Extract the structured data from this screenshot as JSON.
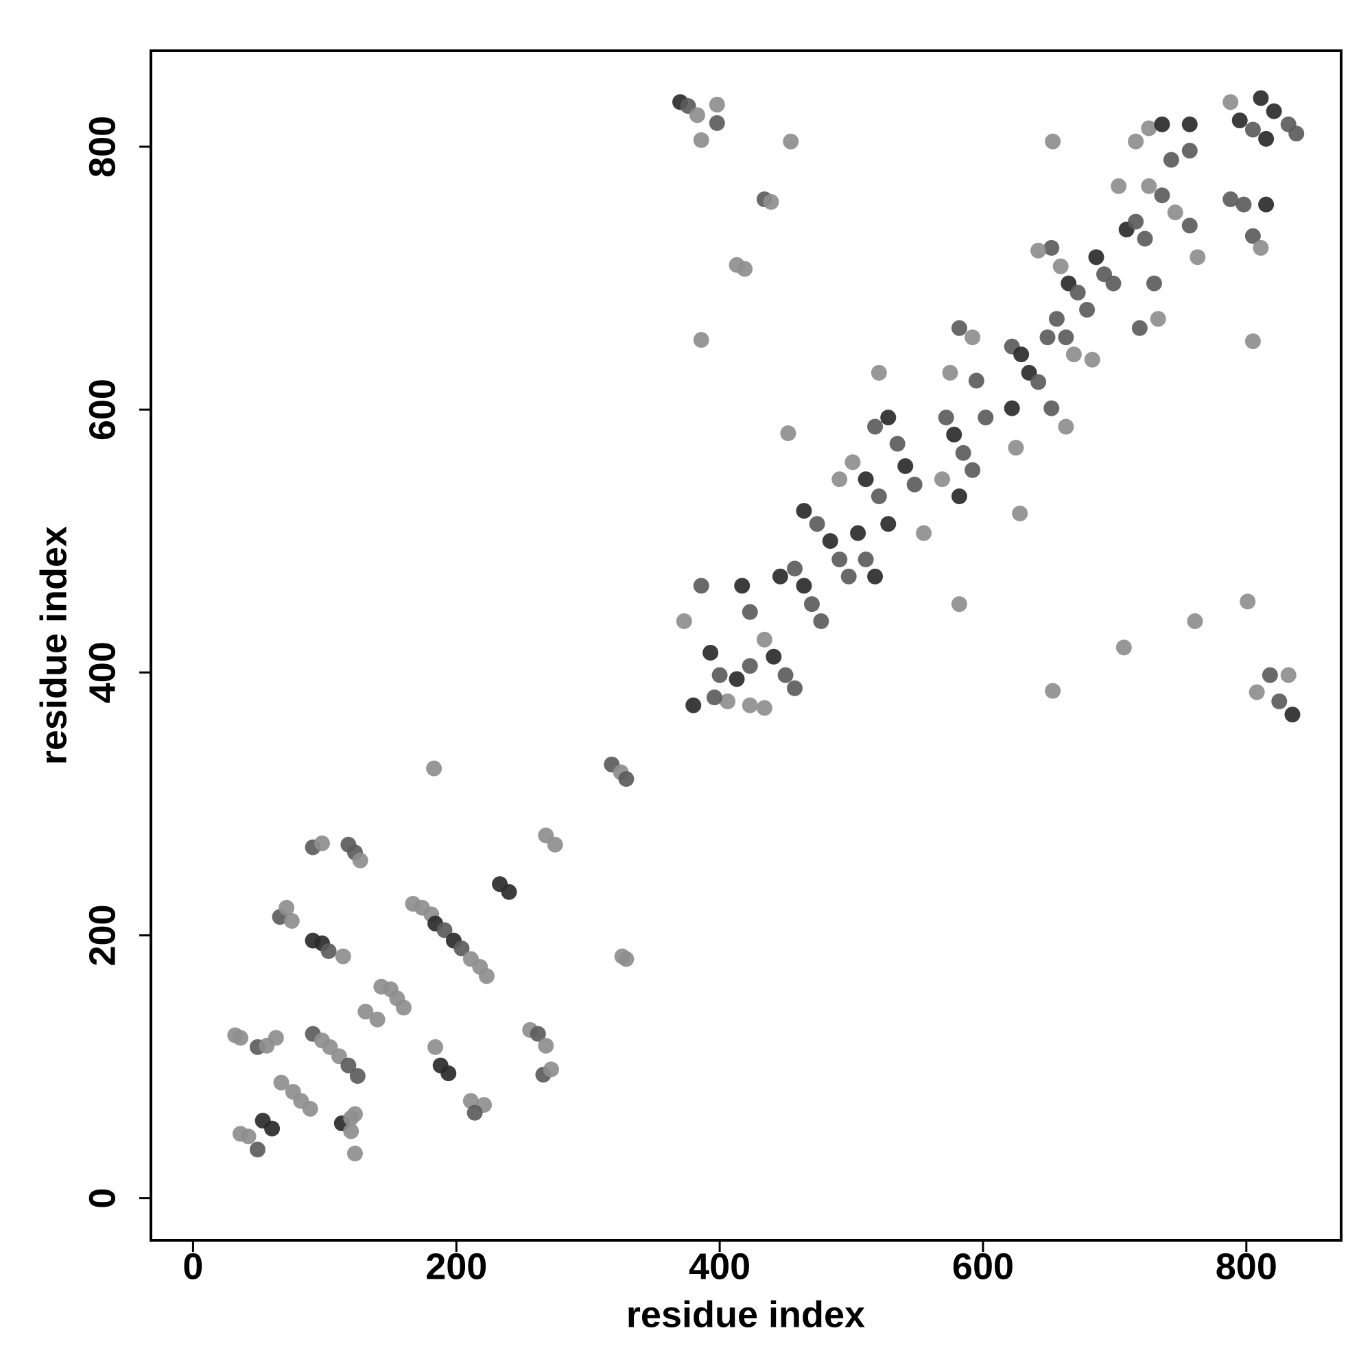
{
  "chart_data": {
    "type": "scatter",
    "x_label": "residue index",
    "y_label": "residue index",
    "xlim": [
      -32,
      872
    ],
    "ylim": [
      -32,
      873
    ],
    "xticks": [
      0,
      200,
      400,
      600,
      800
    ],
    "yticks": [
      0,
      200,
      400,
      600,
      800
    ],
    "grid": false,
    "x": [
      32,
      36,
      36,
      42,
      49,
      53,
      60,
      49,
      56,
      63,
      67,
      76,
      82,
      89,
      66,
      71,
      75,
      91,
      98,
      103,
      114,
      91,
      98,
      118,
      123,
      127,
      91,
      98,
      104,
      111,
      118,
      125,
      113,
      120,
      123,
      120,
      123,
      131,
      140,
      143,
      150,
      155,
      160,
      167,
      174,
      181,
      184,
      191,
      198,
      204,
      211,
      218,
      223,
      183,
      184,
      188,
      194,
      211,
      221,
      214,
      233,
      240,
      256,
      262,
      268,
      266,
      272,
      268,
      275,
      318,
      325,
      329,
      326,
      329,
      370,
      376,
      383,
      386,
      398,
      398,
      386,
      373,
      386,
      393,
      400,
      406,
      413,
      423,
      417,
      423,
      434,
      441,
      450,
      457,
      446,
      457,
      464,
      470,
      477,
      464,
      474,
      484,
      491,
      498,
      491,
      501,
      505,
      511,
      518,
      511,
      521,
      528,
      518,
      528,
      535,
      541,
      548,
      555,
      572,
      578,
      585,
      592,
      569,
      582,
      575,
      582,
      592,
      595,
      602,
      622,
      629,
      635,
      642,
      649,
      656,
      663,
      669,
      652,
      663,
      622,
      625,
      652,
      659,
      665,
      672,
      679,
      686,
      692,
      699,
      703,
      709,
      716,
      723,
      730,
      733,
      719,
      716,
      726,
      736,
      743,
      757,
      757,
      726,
      736,
      746,
      757,
      763,
      788,
      795,
      805,
      815,
      811,
      821,
      832,
      838,
      788,
      798,
      805,
      811,
      815,
      805,
      801,
      818,
      832,
      808,
      825,
      835,
      761,
      707,
      653,
      582,
      521,
      452,
      434,
      439,
      413,
      419,
      454,
      653,
      628,
      683,
      642,
      380,
      396,
      423,
      434
    ],
    "values": [
      124,
      122,
      49,
      47,
      37,
      59,
      53,
      115,
      116,
      122,
      88,
      81,
      74,
      68,
      214,
      221,
      211,
      196,
      194,
      188,
      184,
      267,
      270,
      269,
      263,
      257,
      125,
      120,
      115,
      108,
      101,
      93,
      57,
      61,
      64,
      51,
      34,
      142,
      136,
      161,
      159,
      152,
      145,
      224,
      221,
      216,
      209,
      204,
      196,
      190,
      182,
      176,
      169,
      327,
      115,
      101,
      95,
      74,
      71,
      65,
      239,
      233,
      128,
      125,
      116,
      94,
      98,
      276,
      269,
      330,
      324,
      319,
      184,
      182,
      834,
      831,
      824,
      805,
      818,
      832,
      653,
      439,
      466,
      415,
      398,
      378,
      395,
      405,
      466,
      446,
      425,
      412,
      398,
      388,
      473,
      479,
      466,
      452,
      439,
      523,
      513,
      500,
      486,
      473,
      547,
      560,
      506,
      486,
      473,
      547,
      534,
      513,
      587,
      594,
      574,
      557,
      543,
      506,
      594,
      581,
      567,
      554,
      547,
      534,
      628,
      662,
      655,
      622,
      594,
      648,
      642,
      628,
      621,
      655,
      669,
      655,
      642,
      601,
      587,
      601,
      571,
      723,
      709,
      696,
      689,
      676,
      716,
      703,
      696,
      770,
      737,
      743,
      730,
      696,
      669,
      662,
      804,
      814,
      817,
      790,
      817,
      797,
      770,
      763,
      750,
      740,
      716,
      834,
      820,
      813,
      806,
      837,
      827,
      817,
      810,
      760,
      756,
      732,
      723,
      756,
      652,
      454,
      398,
      398,
      385,
      378,
      368,
      439,
      419,
      386,
      452,
      628,
      582,
      760,
      758,
      710,
      707,
      804,
      804,
      521,
      638,
      721,
      375,
      381,
      375,
      373
    ],
    "colors": [
      "#8e8e8e",
      "#8e8e8e",
      "#8e8e8e",
      "#8e8e8e",
      "#5c5c5c",
      "#2b2b2b",
      "#2b2b2b",
      "#5c5c5c",
      "#8e8e8e",
      "#8e8e8e",
      "#8e8e8e",
      "#8e8e8e",
      "#8e8e8e",
      "#8e8e8e",
      "#5c5c5c",
      "#8e8e8e",
      "#8e8e8e",
      "#2b2b2b",
      "#2b2b2b",
      "#5c5c5c",
      "#8e8e8e",
      "#5c5c5c",
      "#8e8e8e",
      "#5c5c5c",
      "#5c5c5c",
      "#8e8e8e",
      "#5c5c5c",
      "#8e8e8e",
      "#8e8e8e",
      "#8e8e8e",
      "#5c5c5c",
      "#5c5c5c",
      "#2b2b2b",
      "#8e8e8e",
      "#8e8e8e",
      "#8e8e8e",
      "#8e8e8e",
      "#8e8e8e",
      "#8e8e8e",
      "#8e8e8e",
      "#8e8e8e",
      "#8e8e8e",
      "#8e8e8e",
      "#8e8e8e",
      "#8e8e8e",
      "#8e8e8e",
      "#2b2b2b",
      "#5c5c5c",
      "#2b2b2b",
      "#5c5c5c",
      "#8e8e8e",
      "#8e8e8e",
      "#8e8e8e",
      "#8e8e8e",
      "#8e8e8e",
      "#2b2b2b",
      "#2b2b2b",
      "#8e8e8e",
      "#8e8e8e",
      "#5c5c5c",
      "#2b2b2b",
      "#2b2b2b",
      "#8e8e8e",
      "#5c5c5c",
      "#8e8e8e",
      "#5c5c5c",
      "#8e8e8e",
      "#8e8e8e",
      "#8e8e8e",
      "#5c5c5c",
      "#8e8e8e",
      "#5c5c5c",
      "#8e8e8e",
      "#8e8e8e",
      "#2b2b2b",
      "#5c5c5c",
      "#8e8e8e",
      "#8e8e8e",
      "#5c5c5c",
      "#8e8e8e",
      "#8e8e8e",
      "#8e8e8e",
      "#5c5c5c",
      "#2b2b2b",
      "#5c5c5c",
      "#8e8e8e",
      "#2b2b2b",
      "#5c5c5c",
      "#2b2b2b",
      "#5c5c5c",
      "#8e8e8e",
      "#2b2b2b",
      "#5c5c5c",
      "#5c5c5c",
      "#2b2b2b",
      "#5c5c5c",
      "#2b2b2b",
      "#5c5c5c",
      "#5c5c5c",
      "#2b2b2b",
      "#5c5c5c",
      "#2b2b2b",
      "#5c5c5c",
      "#5c5c5c",
      "#8e8e8e",
      "#8e8e8e",
      "#2b2b2b",
      "#5c5c5c",
      "#2b2b2b",
      "#2b2b2b",
      "#5c5c5c",
      "#2b2b2b",
      "#5c5c5c",
      "#2b2b2b",
      "#5c5c5c",
      "#2b2b2b",
      "#5c5c5c",
      "#8e8e8e",
      "#5c5c5c",
      "#2b2b2b",
      "#5c5c5c",
      "#5c5c5c",
      "#8e8e8e",
      "#2b2b2b",
      "#8e8e8e",
      "#5c5c5c",
      "#8e8e8e",
      "#5c5c5c",
      "#5c5c5c",
      "#5c5c5c",
      "#2b2b2b",
      "#2b2b2b",
      "#5c5c5c",
      "#5c5c5c",
      "#5c5c5c",
      "#5c5c5c",
      "#8e8e8e",
      "#5c5c5c",
      "#8e8e8e",
      "#2b2b2b",
      "#8e8e8e",
      "#5c5c5c",
      "#8e8e8e",
      "#2b2b2b",
      "#5c5c5c",
      "#5c5c5c",
      "#2b2b2b",
      "#5c5c5c",
      "#5c5c5c",
      "#8e8e8e",
      "#2b2b2b",
      "#5c5c5c",
      "#5c5c5c",
      "#5c5c5c",
      "#8e8e8e",
      "#5c5c5c",
      "#8e8e8e",
      "#8e8e8e",
      "#2b2b2b",
      "#5c5c5c",
      "#2b2b2b",
      "#5c5c5c",
      "#8e8e8e",
      "#5c5c5c",
      "#8e8e8e",
      "#5c5c5c",
      "#8e8e8e",
      "#8e8e8e",
      "#2b2b2b",
      "#5c5c5c",
      "#2b2b2b",
      "#2b2b2b",
      "#2b2b2b",
      "#5c5c5c",
      "#5c5c5c",
      "#5c5c5c",
      "#5c5c5c",
      "#5c5c5c",
      "#8e8e8e",
      "#2b2b2b",
      "#8e8e8e",
      "#8e8e8e",
      "#5c5c5c",
      "#8e8e8e",
      "#8e8e8e",
      "#5c5c5c",
      "#2b2b2b",
      "#8e8e8e",
      "#8e8e8e",
      "#8e8e8e",
      "#8e8e8e",
      "#8e8e8e",
      "#8e8e8e",
      "#5c5c5c",
      "#8e8e8e",
      "#8e8e8e",
      "#8e8e8e",
      "#8e8e8e",
      "#8e8e8e",
      "#8e8e8e",
      "#8e8e8e",
      "#8e8e8e",
      "#2b2b2b",
      "#5c5c5c",
      "#8e8e8e",
      "#8e8e8e"
    ]
  }
}
